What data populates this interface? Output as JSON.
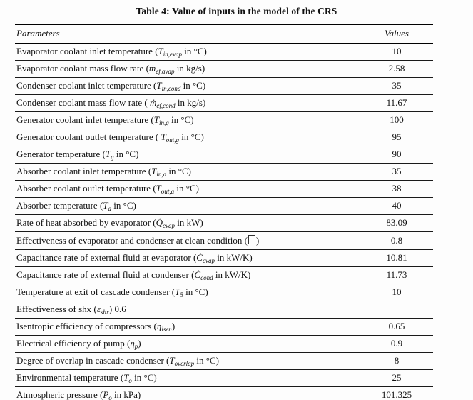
{
  "title": "Table 4: Value of inputs in the model of the CRS",
  "table": {
    "headers": [
      "Parameters",
      "Values"
    ],
    "rows": [
      {
        "p": [
          [
            "t",
            "Evaporator coolant inlet temperature ("
          ],
          [
            "m",
            "T"
          ],
          [
            "s",
            "in,evap"
          ],
          [
            "t",
            " in °C)"
          ]
        ],
        "v": "10"
      },
      {
        "p": [
          [
            "t",
            "Evaporator coolant mass flow rate ("
          ],
          [
            "m",
            "ṁ"
          ],
          [
            "s",
            "ef,avap"
          ],
          [
            "t",
            " in kg/s)"
          ]
        ],
        "v": "2.58"
      },
      {
        "p": [
          [
            "t",
            "Condenser coolant inlet temperature ("
          ],
          [
            "m",
            "T"
          ],
          [
            "s",
            "in,cond"
          ],
          [
            "t",
            " in °C)"
          ]
        ],
        "v": "35"
      },
      {
        "p": [
          [
            "t",
            "Condenser coolant mass flow rate ( "
          ],
          [
            "m",
            "ṁ"
          ],
          [
            "s",
            "ef,cond"
          ],
          [
            "t",
            " in kg/s)"
          ]
        ],
        "v": "11.67"
      },
      {
        "p": [
          [
            "t",
            "Generator coolant inlet temperature ("
          ],
          [
            "m",
            "T"
          ],
          [
            "s",
            "in,g"
          ],
          [
            "t",
            " in °C)"
          ]
        ],
        "v": "100"
      },
      {
        "p": [
          [
            "t",
            "Generator coolant outlet temperature ( "
          ],
          [
            "m",
            "T"
          ],
          [
            "s",
            "out,g"
          ],
          [
            "t",
            " in °C)"
          ]
        ],
        "v": "95"
      },
      {
        "p": [
          [
            "t",
            "Generator temperature ("
          ],
          [
            "m",
            "T"
          ],
          [
            "s",
            "g"
          ],
          [
            "t",
            " in °C)"
          ]
        ],
        "v": "90"
      },
      {
        "p": [
          [
            "t",
            "Absorber coolant inlet temperature ("
          ],
          [
            "m",
            "T"
          ],
          [
            "s",
            "in,a"
          ],
          [
            "t",
            " in °C)"
          ]
        ],
        "v": "35"
      },
      {
        "p": [
          [
            "t",
            "Absorber coolant outlet temperature ("
          ],
          [
            "m",
            "T"
          ],
          [
            "s",
            "out,a"
          ],
          [
            "t",
            " in °C)"
          ]
        ],
        "v": "38"
      },
      {
        "p": [
          [
            "t",
            "Absorber temperature ("
          ],
          [
            "m",
            "T"
          ],
          [
            "s",
            "a"
          ],
          [
            "t",
            " in °C)"
          ]
        ],
        "v": "40"
      },
      {
        "p": [
          [
            "t",
            "Rate of heat absorbed by evaporator ("
          ],
          [
            "m",
            "Q̇"
          ],
          [
            "s",
            "evap"
          ],
          [
            "t",
            " in kW)"
          ]
        ],
        "v": "83.09"
      },
      {
        "p": [
          [
            "t",
            "Effectiveness of evaporator and condenser at clean condition ("
          ],
          [
            "x",
            ""
          ],
          [
            "t",
            ")"
          ]
        ],
        "v": "0.8"
      },
      {
        "p": [
          [
            "t",
            "Capacitance rate of external fluid at evaporator ("
          ],
          [
            "m",
            "Ċ"
          ],
          [
            "s",
            "evap"
          ],
          [
            "t",
            " in kW/K)"
          ]
        ],
        "v": "10.81"
      },
      {
        "p": [
          [
            "t",
            "Capacitance rate of external fluid at condenser ("
          ],
          [
            "m",
            "Ċ"
          ],
          [
            "s",
            "cond"
          ],
          [
            "t",
            " in kW/K)"
          ]
        ],
        "v": "11.73"
      },
      {
        "p": [
          [
            "t",
            "Temperature at exit of cascade condenser ("
          ],
          [
            "m",
            "T"
          ],
          [
            "s",
            "5"
          ],
          [
            "t",
            " in °C)"
          ]
        ],
        "v": "10"
      },
      {
        "p": [
          [
            "t",
            "Effectiveness of shx ("
          ],
          [
            "m",
            "ε"
          ],
          [
            "s",
            "shx"
          ],
          [
            "t",
            ") 0.6"
          ]
        ],
        "v": ""
      },
      {
        "p": [
          [
            "t",
            "Isentropic efficiency of compressors ("
          ],
          [
            "m",
            "η"
          ],
          [
            "s",
            "isen"
          ],
          [
            "t",
            ")"
          ]
        ],
        "v": "0.65"
      },
      {
        "p": [
          [
            "t",
            "Electrical efficiency of pump ("
          ],
          [
            "m",
            "η"
          ],
          [
            "s",
            "p"
          ],
          [
            "t",
            ")"
          ]
        ],
        "v": "0.9"
      },
      {
        "p": [
          [
            "t",
            "Degree of overlap in cascade condenser ("
          ],
          [
            "m",
            "T"
          ],
          [
            "s",
            "overlap"
          ],
          [
            "t",
            " in °C)"
          ]
        ],
        "v": "8"
      },
      {
        "p": [
          [
            "t",
            "Environmental temperature ("
          ],
          [
            "m",
            "T"
          ],
          [
            "s",
            "o"
          ],
          [
            "t",
            " in °C)"
          ]
        ],
        "v": "25"
      },
      {
        "p": [
          [
            "t",
            "Atmospheric pressure ("
          ],
          [
            "m",
            "P"
          ],
          [
            "s",
            "o"
          ],
          [
            "t",
            " in kPa)"
          ]
        ],
        "v": "101.325"
      }
    ]
  }
}
